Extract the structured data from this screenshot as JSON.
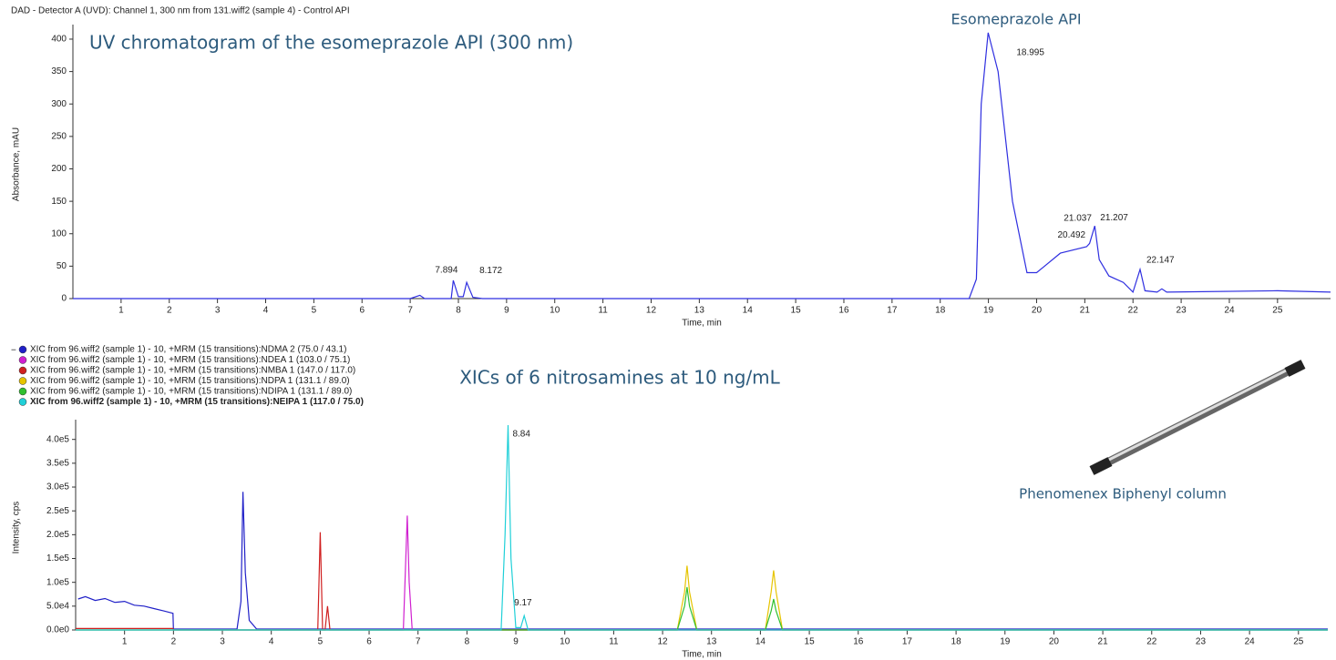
{
  "chart_data": [
    {
      "type": "line",
      "title": "DAD - Detector A (UVD): Channel 1, 300 nm from 131.wiff2 (sample 4) - Control API",
      "annotations": [
        "UV chromatogram of the esomeprazole API (300 nm)",
        "Esomeprazole API"
      ],
      "x_label": "Time, min",
      "y_label": "Absorbance, mAU",
      "color": "#2f2fe0",
      "x": [
        0,
        7.0,
        7.2,
        7.3,
        7.85,
        7.894,
        8.0,
        8.1,
        8.172,
        8.3,
        8.5,
        18.6,
        18.75,
        18.85,
        18.995,
        19.2,
        19.5,
        19.8,
        20.0,
        20.492,
        21.037,
        21.1,
        21.207,
        21.3,
        21.5,
        21.8,
        22.0,
        22.147,
        22.25,
        22.5,
        22.6,
        22.7,
        25.0,
        26.1
      ],
      "values": [
        0,
        0,
        5,
        0,
        0,
        28,
        3,
        3,
        25,
        2,
        0,
        0,
        30,
        300,
        410,
        350,
        150,
        40,
        40,
        70,
        80,
        85,
        112,
        60,
        35,
        25,
        10,
        45,
        12,
        10,
        15,
        10,
        12,
        10
      ],
      "peak_labels": [
        {
          "x": 7.894,
          "y": 28
        },
        {
          "x": 8.172,
          "y": 25
        },
        {
          "x": 18.995,
          "y": 410
        },
        {
          "x": 20.492,
          "y": 70
        },
        {
          "x": 21.037,
          "y": 80
        },
        {
          "x": 21.207,
          "y": 112
        },
        {
          "x": 22.147,
          "y": 45
        }
      ],
      "xlim": [
        0,
        26.1
      ],
      "xticks": [
        1,
        2,
        3,
        4,
        5,
        6,
        7,
        8,
        9,
        10,
        11,
        12,
        13,
        14,
        15,
        16,
        17,
        18,
        19,
        20,
        21,
        22,
        23,
        24,
        25
      ],
      "ylim": [
        0,
        414
      ],
      "yticks": [
        0,
        50,
        100,
        150,
        200,
        250,
        300,
        350,
        400
      ]
    },
    {
      "type": "line",
      "annotations": [
        "XICs of 6 nitrosamines at 10 ng/mL",
        "Phenomenex Biphenyl column"
      ],
      "x_label": "Time, min",
      "y_label": "Intensity, cps",
      "series": [
        {
          "name": "XIC from 96.wiff2 (sample 1) - 10, +MRM (15 transitions):NDMA 2 (75.0 / 43.1)",
          "color": "#2020c8",
          "x": [
            0.05,
            0.2,
            0.4,
            0.6,
            0.8,
            1.0,
            1.2,
            1.4,
            1.6,
            1.8,
            1.99,
            2.0,
            3.3,
            3.38,
            3.42,
            3.47,
            3.55,
            3.7,
            25.6
          ],
          "values": [
            65000,
            70000,
            62000,
            66000,
            58000,
            60000,
            52000,
            50000,
            45000,
            40000,
            35000,
            2000,
            2000,
            60000,
            290000,
            120000,
            20000,
            2000,
            2000
          ]
        },
        {
          "name": "XIC from 96.wiff2 (sample 1) - 10, +MRM (15 transitions):NDEA 1 (103.0 / 75.1)",
          "color": "#d020d0",
          "x": [
            0,
            6.7,
            6.78,
            6.82,
            6.88,
            25.6
          ],
          "values": [
            0,
            0,
            240000,
            100000,
            0,
            0
          ]
        },
        {
          "name": "XIC from 96.wiff2 (sample 1) - 10, +MRM (15 transitions):NMBA 1 (147.0 / 117.0)",
          "color": "#d02020",
          "x": [
            0,
            1.99,
            2.0,
            4.95,
            5.0,
            5.05,
            5.1,
            5.15,
            5.2,
            25.6
          ],
          "values": [
            3000,
            3000,
            0,
            0,
            205000,
            0,
            0,
            50000,
            0,
            0
          ]
        },
        {
          "name": "XIC from 96.wiff2 (sample 1) - 10, +MRM (15 transitions):NDPA 1 (131.1 / 89.0)",
          "color": "#e6c400",
          "x": [
            0,
            12.3,
            12.45,
            12.5,
            12.55,
            12.7,
            14.1,
            14.22,
            14.27,
            14.32,
            14.45,
            25.6
          ],
          "values": [
            0,
            0,
            80000,
            135000,
            80000,
            0,
            0,
            80000,
            125000,
            80000,
            0,
            0
          ]
        },
        {
          "name": "XIC from 96.wiff2 (sample 1) - 10, +MRM (15 transitions):NDIPA 1 (131.1 / 89.0)",
          "color": "#30c030",
          "x": [
            0,
            12.3,
            12.45,
            12.5,
            12.55,
            12.7,
            14.1,
            14.22,
            14.27,
            14.32,
            14.45,
            25.6
          ],
          "values": [
            0,
            0,
            50000,
            90000,
            50000,
            0,
            0,
            40000,
            65000,
            40000,
            0,
            0
          ]
        },
        {
          "name": "XIC from 96.wiff2 (sample 1) - 10, +MRM (15 transitions):NEIPA 1 (117.0 / 75.0)",
          "color": "#20d0d8",
          "x": [
            0,
            8.7,
            8.78,
            8.84,
            8.9,
            9.0,
            9.1,
            9.17,
            9.25,
            25.6
          ],
          "values": [
            0,
            0,
            200000,
            430000,
            150000,
            5000,
            5000,
            30000,
            0,
            0
          ]
        }
      ],
      "peak_labels": [
        {
          "x": 8.84,
          "y": 430000
        },
        {
          "x": 9.17,
          "y": 30000
        }
      ],
      "xlim": [
        0,
        25.6
      ],
      "xticks": [
        1,
        2,
        3,
        4,
        5,
        6,
        7,
        8,
        9,
        10,
        11,
        12,
        13,
        14,
        15,
        16,
        17,
        18,
        19,
        20,
        21,
        22,
        23,
        24,
        25
      ],
      "ylim": [
        0,
        430000
      ],
      "yticks": [
        {
          "value": 0,
          "label": "0.0e0"
        },
        {
          "value": 50000,
          "label": "5.0e4"
        },
        {
          "value": 100000,
          "label": "1.0e5"
        },
        {
          "value": 150000,
          "label": "1.5e5"
        },
        {
          "value": 200000,
          "label": "2.0e5"
        },
        {
          "value": 250000,
          "label": "2.5e5"
        },
        {
          "value": 300000,
          "label": "3.0e5"
        },
        {
          "value": 350000,
          "label": "3.5e5"
        },
        {
          "value": 400000,
          "label": "4.0e5"
        }
      ]
    }
  ]
}
